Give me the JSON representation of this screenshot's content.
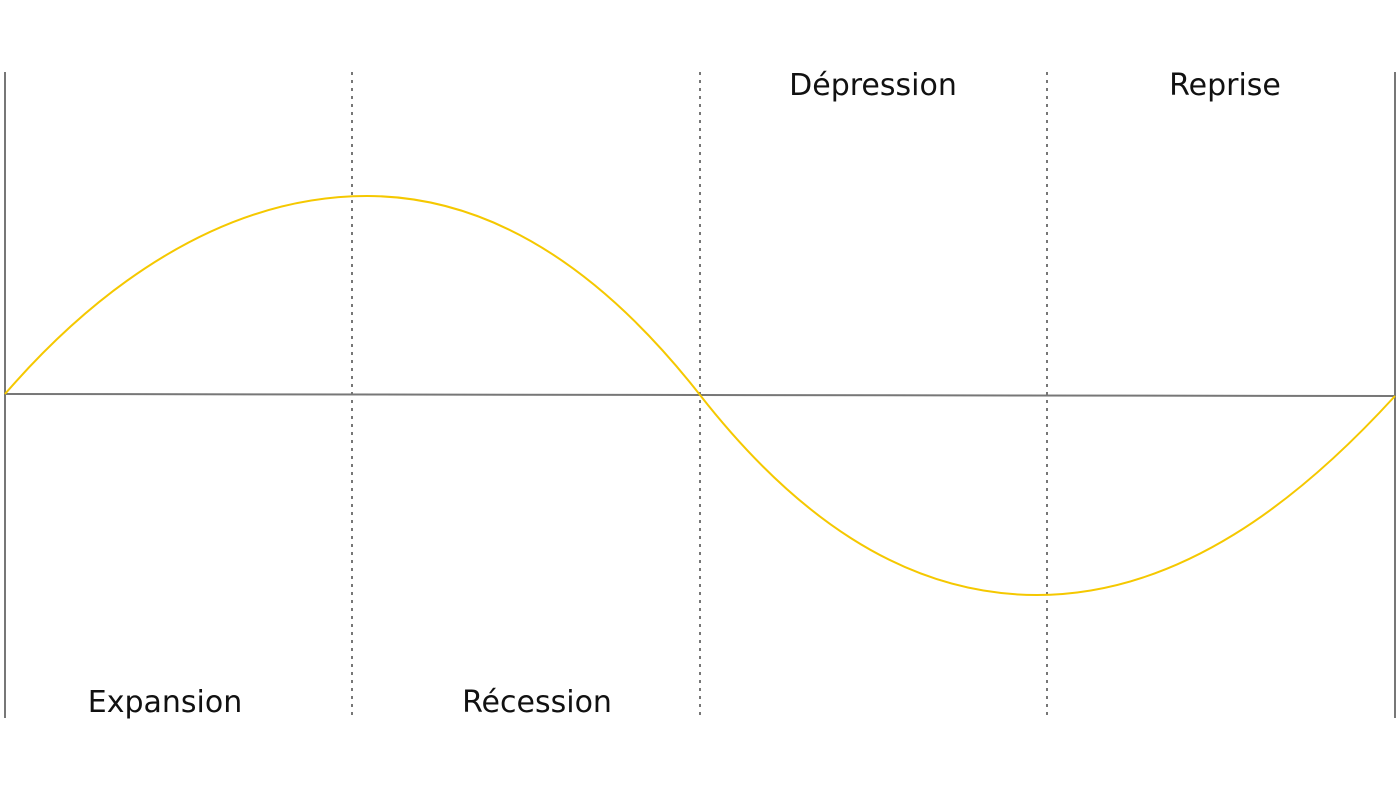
{
  "labels": {
    "expansion": "Expansion",
    "recession": "Récession",
    "depression": "Dépression",
    "reprise": "Reprise"
  },
  "colors": {
    "wave": "#f5c800",
    "axis": "#777777",
    "text": "#111111"
  }
}
